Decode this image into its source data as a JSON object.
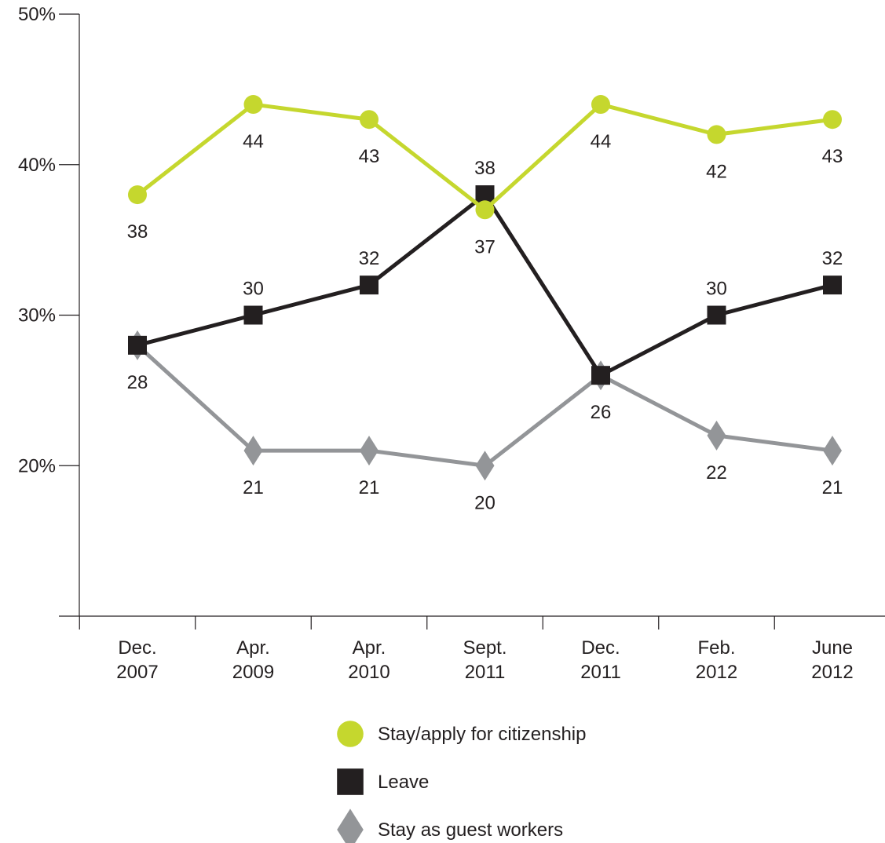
{
  "chart_data": {
    "type": "line",
    "categories": [
      "Dec.\n2007",
      "Apr.\n2009",
      "Apr.\n2010",
      "Sept.\n2011",
      "Dec.\n2011",
      "Feb.\n2012",
      "June\n2012"
    ],
    "ylim": [
      10,
      50
    ],
    "yticks": [
      20,
      30,
      40,
      50
    ],
    "ytick_labels": [
      "20%",
      "30%",
      "40%",
      "50%"
    ],
    "grid": false,
    "legend_position": "bottom",
    "series": [
      {
        "name": "Stay/apply for citizenship",
        "values": [
          38,
          44,
          43,
          37,
          44,
          42,
          43
        ],
        "color": "#c5d72e",
        "marker": "circle",
        "label_pos": [
          "below",
          "below",
          "below",
          "below",
          "below",
          "below",
          "below"
        ]
      },
      {
        "name": "Leave",
        "values": [
          28,
          30,
          32,
          38,
          26,
          30,
          32
        ],
        "color": "#231f20",
        "marker": "square",
        "label_pos": [
          "below",
          "above",
          "above",
          "above",
          "below",
          "above",
          "above"
        ]
      },
      {
        "name": "Stay as guest workers",
        "values": [
          28,
          21,
          21,
          20,
          26,
          22,
          21
        ],
        "color": "#939598",
        "marker": "diamond",
        "label_pos": [
          "none",
          "below",
          "below",
          "below",
          "none",
          "below",
          "below"
        ]
      }
    ]
  }
}
